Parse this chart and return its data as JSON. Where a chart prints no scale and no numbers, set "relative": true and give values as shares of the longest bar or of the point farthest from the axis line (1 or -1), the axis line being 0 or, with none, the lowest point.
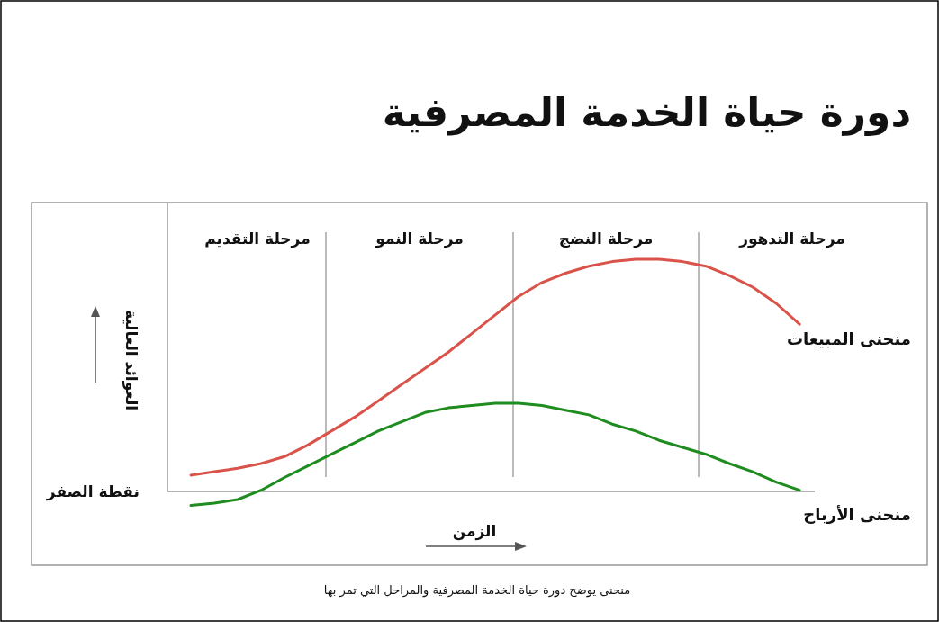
{
  "chart_data": {
    "type": "line",
    "relative": true,
    "title": "دورة حياة الخدمة المصرفية",
    "xlabel": "الزمن",
    "ylabel": "العوائد العالية",
    "categories": [
      null,
      null,
      null,
      null,
      null,
      null,
      null,
      null,
      null,
      null,
      null,
      null,
      null,
      null,
      null,
      null,
      null,
      null,
      null,
      null,
      null,
      null,
      null,
      null,
      null,
      null,
      null
    ],
    "series": [
      {
        "name": "منحنى المبيعات",
        "color": "#d9534a",
        "values": [
          0.07,
          0.085,
          0.1,
          0.12,
          0.15,
          0.2,
          0.26,
          0.32,
          0.39,
          0.46,
          0.53,
          0.6,
          0.68,
          0.76,
          0.84,
          0.9,
          0.94,
          0.97,
          0.99,
          1,
          1,
          0.99,
          0.97,
          0.93,
          0.88,
          0.81,
          0.72
        ]
      },
      {
        "name": "منحنى الأرباح",
        "color": "#1e8c1e",
        "values": [
          -0.06,
          -0.05,
          -0.035,
          0.005,
          0.06,
          0.11,
          0.16,
          0.21,
          0.26,
          0.3,
          0.34,
          0.36,
          0.37,
          0.38,
          0.38,
          0.37,
          0.35,
          0.33,
          0.29,
          0.26,
          0.22,
          0.19,
          0.16,
          0.12,
          0.085,
          0.04,
          0.005
        ]
      }
    ],
    "annotations": [
      "مرحلة التقديم",
      "مرحلة النمو",
      "مرحلة النضج",
      "مرحلة التدهور",
      "نقطة الصفر",
      "منحنى يوضح دورة حياة الخدمة المصرفية والمراحل التي تمر بها"
    ]
  }
}
